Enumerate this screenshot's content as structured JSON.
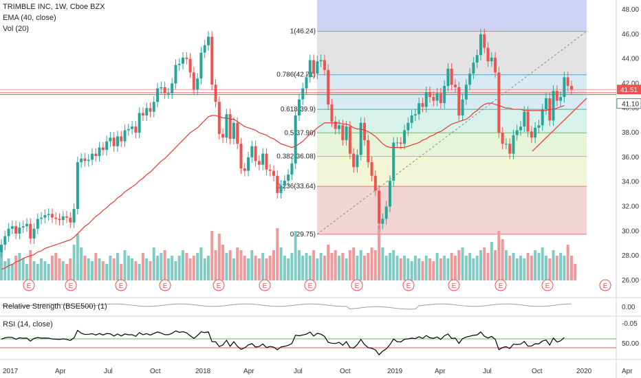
{
  "header": {
    "symbol_line": "TRIMBLE INC, 1W, Cboe BZX",
    "ema_label": "EMA (40, close)",
    "vol_label": "Vol (20)"
  },
  "rs_label": "Relative Strength (BSE500) (1)",
  "rsi_label": "RSI (14, close)",
  "chart_data": {
    "type": "candlestick",
    "title": "TRIMBLE INC, 1W, Cboe BZX",
    "price_ticks": [
      "48.00",
      "46.00",
      "44.00",
      "42.00",
      "40.00",
      "38.00",
      "36.00",
      "34.00",
      "32.00",
      "30.00",
      "28.00",
      "26.00"
    ],
    "price_range": [
      25.2,
      48.6
    ],
    "x_ticks": [
      "2017",
      "Apr",
      "Jul",
      "Oct",
      "2018",
      "Apr",
      "Jul",
      "Oct",
      "2019",
      "Apr",
      "Jul",
      "Oct",
      "2020",
      "Apr"
    ],
    "last_price": "41.51",
    "marked_level": "41.10",
    "fibonacci": [
      {
        "label": "1(46.24)",
        "value": 46.24
      },
      {
        "label": "0.786(42.71)",
        "value": 42.71
      },
      {
        "label": "0.618(39.9)",
        "value": 39.9
      },
      {
        "label": "0.5(37.99)",
        "value": 37.99
      },
      {
        "label": "0.382(36.08)",
        "value": 36.08
      },
      {
        "label": "0.236(33.64)",
        "value": 33.64
      },
      {
        "label": "0(29.75)",
        "value": 29.75
      }
    ],
    "closes": [
      28.9,
      29.6,
      30.2,
      30.4,
      29.8,
      30.3,
      30.4,
      30.6,
      29.4,
      30.2,
      31.0,
      31.1,
      31.3,
      31.4,
      31.1,
      31.0,
      30.9,
      31.2,
      31.1,
      30.7,
      31.8,
      35.6,
      35.9,
      35.7,
      35.8,
      36.3,
      36.1,
      36.8,
      36.6,
      37.3,
      37.6,
      36.9,
      37.7,
      37.3,
      38.2,
      38.3,
      38.5,
      38.0,
      39.6,
      39.4,
      40.0,
      39.7,
      40.5,
      41.6,
      41.7,
      41.2,
      41.2,
      42.0,
      43.5,
      43.6,
      44.1,
      44.0,
      42.9,
      41.5,
      42.4,
      44.5,
      45.1,
      45.8,
      41.9,
      40.5,
      37.9,
      37.6,
      39.5,
      37.5,
      38.8,
      37.1,
      35.1,
      34.9,
      36.0,
      36.9,
      35.7,
      35.4,
      36.3,
      35.0,
      34.9,
      34.5,
      33.1,
      33.7,
      34.1,
      34.6,
      35.5,
      39.4,
      40.7,
      41.6,
      42.5,
      43.9,
      42.8,
      43.8,
      43.9,
      43.1,
      40.3,
      38.9,
      38.3,
      38.6,
      37.4,
      38.5,
      36.3,
      35.2,
      36.2,
      38.8,
      37.4,
      35.6,
      34.5,
      33.3,
      30.6,
      31.0,
      32.0,
      34.1,
      37.2,
      37.2,
      37.1,
      38.2,
      38.8,
      39.4,
      39.5,
      40.4,
      40.1,
      41.3,
      40.9,
      40.6,
      41.2,
      40.4,
      41.8,
      43.2,
      41.9,
      41.7,
      39.4,
      40.7,
      41.9,
      42.8,
      43.7,
      44.3,
      46.0,
      44.9,
      43.8,
      44.1,
      42.9,
      38.0,
      37.1,
      37.1,
      36.3,
      37.8,
      38.2,
      38.5,
      39.7,
      38.1,
      37.6,
      38.4,
      38.6,
      39.9,
      40.8,
      39.0,
      41.4,
      40.6,
      40.9,
      42.5,
      41.8,
      41.5
    ],
    "ema40": [
      26.9,
      27.0,
      27.2,
      27.3,
      27.5,
      27.6,
      27.8,
      27.9,
      28.0,
      28.1,
      28.3,
      28.4,
      28.6,
      28.7,
      28.8,
      28.9,
      29.0,
      29.1,
      29.2,
      29.3,
      29.5,
      29.8,
      30.1,
      30.4,
      30.6,
      30.9,
      31.2,
      31.4,
      31.7,
      31.9,
      32.2,
      32.4,
      32.7,
      32.9,
      33.2,
      33.4,
      33.6,
      33.8,
      34.1,
      34.3,
      34.6,
      34.8,
      35.1,
      35.4,
      35.7,
      35.9,
      36.2,
      36.5,
      36.8,
      37.1,
      37.4,
      37.7,
      38.0,
      38.2,
      38.4,
      38.7,
      39.0,
      39.3,
      39.4,
      39.4,
      39.3,
      39.2,
      39.2,
      39.1,
      39.1,
      38.9,
      38.7,
      38.5,
      38.4,
      38.3,
      38.2,
      38.0,
      37.9,
      37.8,
      37.6,
      37.5,
      37.3,
      37.1,
      37.0,
      36.9,
      36.8,
      36.9,
      37.1,
      37.3,
      37.6,
      37.9,
      38.1,
      38.4,
      38.6,
      38.8,
      38.8,
      38.8,
      38.8,
      38.8,
      38.7,
      38.7,
      38.6,
      38.4,
      38.3,
      38.3,
      38.2,
      38.1,
      37.9,
      37.7,
      37.4,
      37.1,
      36.9,
      36.8,
      36.8,
      36.8,
      36.8,
      36.8,
      36.9,
      37.0,
      37.1,
      37.2,
      37.4,
      37.5,
      37.7,
      37.8,
      38.0,
      38.1,
      38.3,
      38.5,
      38.7,
      38.8,
      38.9,
      39.0,
      39.1,
      39.3,
      39.6,
      39.8,
      40.1,
      40.3,
      40.4,
      40.4,
      40.3,
      40.2,
      40.1,
      40.0,
      40.0,
      39.9,
      39.9,
      39.9,
      39.8,
      39.8,
      39.8,
      39.8,
      39.8,
      39.8,
      39.8,
      39.9,
      39.9,
      40.0,
      40.1,
      40.2
    ],
    "volume": [
      0.55,
      0.35,
      0.4,
      0.3,
      0.45,
      0.5,
      0.4,
      0.3,
      0.55,
      0.35,
      0.3,
      0.4,
      0.35,
      0.3,
      0.45,
      0.5,
      0.4,
      0.35,
      0.3,
      0.4,
      0.65,
      0.85,
      0.6,
      0.45,
      0.4,
      0.35,
      0.5,
      0.4,
      0.35,
      0.3,
      0.45,
      0.4,
      0.5,
      0.3,
      0.55,
      0.45,
      0.4,
      0.35,
      0.3,
      0.5,
      0.4,
      0.35,
      0.6,
      0.45,
      0.5,
      0.55,
      0.4,
      0.45,
      0.35,
      0.45,
      0.55,
      0.5,
      0.4,
      0.45,
      0.5,
      0.6,
      0.4,
      0.45,
      0.9,
      0.55,
      0.85,
      0.65,
      0.5,
      0.55,
      0.4,
      0.6,
      0.55,
      0.45,
      0.4,
      0.55,
      0.45,
      0.4,
      0.5,
      0.4,
      0.45,
      0.55,
      0.95,
      0.6,
      0.45,
      0.4,
      0.5,
      0.9,
      0.55,
      0.45,
      0.5,
      0.45,
      0.55,
      0.4,
      0.5,
      0.45,
      0.65,
      0.5,
      0.55,
      0.45,
      0.5,
      0.4,
      0.55,
      0.6,
      0.45,
      0.55,
      0.45,
      0.5,
      0.6,
      0.55,
      1.0,
      0.6,
      0.45,
      0.5,
      0.55,
      0.45,
      0.4,
      0.45,
      0.4,
      0.35,
      0.45,
      0.4,
      0.35,
      0.45,
      0.4,
      0.35,
      0.5,
      0.4,
      0.45,
      0.4,
      0.5,
      0.45,
      0.55,
      0.6,
      0.45,
      0.5,
      0.4,
      0.45,
      0.55,
      0.6,
      0.5,
      0.7,
      0.55,
      0.9,
      0.75,
      0.55,
      0.45,
      0.5,
      0.4,
      0.45,
      0.4,
      0.5,
      0.45,
      0.55,
      0.5,
      0.6,
      0.45,
      0.4,
      0.55,
      0.45,
      0.5,
      0.45,
      0.65,
      0.45,
      0.3
    ],
    "earnings_marker": "E",
    "rs_ticks": [
      "0.00",
      "-0.05"
    ],
    "rsi_ticks": [
      "50.00"
    ]
  },
  "colors": {
    "up": "#26a69a",
    "down": "#ef5350",
    "ema": "#e53935",
    "last_price_bg": "#ef5350",
    "level_bg": "#43a047",
    "fib_top": "#6c6ce0"
  }
}
